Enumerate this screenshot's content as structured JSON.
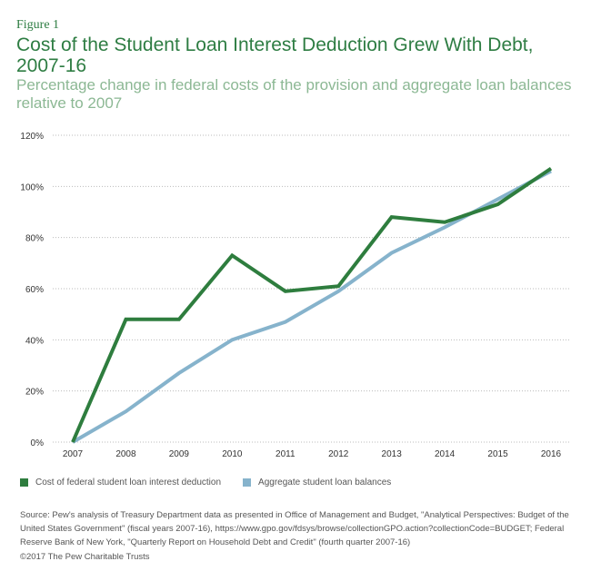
{
  "figure_label": "Figure 1",
  "chart_data": {
    "type": "line",
    "title": "Cost of the Student Loan Interest Deduction Grew With Debt, 2007-16",
    "subtitle": "Percentage change in federal costs of the provision and aggregate loan balances relative to 2007",
    "xlabel": "",
    "ylabel": "",
    "x": [
      "2007",
      "2008",
      "2009",
      "2010",
      "2011",
      "2012",
      "2013",
      "2014",
      "2015",
      "2016"
    ],
    "yticks": [
      "0%",
      "20%",
      "40%",
      "60%",
      "80%",
      "100%",
      "120%"
    ],
    "ylim": [
      0,
      120
    ],
    "grid": true,
    "legend_placement": "bottom-left",
    "series": [
      {
        "name": "Cost of federal student loan interest deduction",
        "color": "#2e7d3e",
        "values": [
          0,
          48,
          48,
          73,
          59,
          61,
          88,
          86,
          93,
          107
        ]
      },
      {
        "name": "Aggregate student loan balances",
        "color": "#86b3cc",
        "values": [
          0,
          12,
          27,
          40,
          47,
          59,
          74,
          84,
          95,
          106
        ]
      }
    ]
  },
  "source": "Source: Pew's analysis of Treasury Department data as presented in Office of Management and Budget, \"Analytical Perspectives: Budget of the United States Government\" (fiscal years 2007-16), https://www.gpo.gov/fdsys/browse/collectionGPO.action?collectionCode=BUDGET; Federal Reserve Bank of New York, \"Quarterly Report on Household Debt and Credit\" (fourth quarter 2007-16)",
  "copyright": "©2017 The Pew Charitable Trusts"
}
